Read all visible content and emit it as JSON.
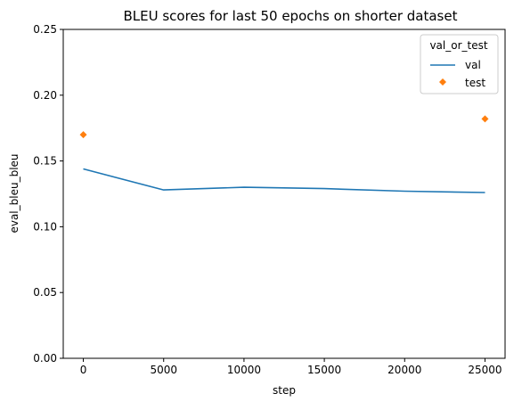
{
  "chart_data": {
    "type": "line",
    "title": "BLEU scores for last 50 epochs on shorter dataset",
    "xlabel": "step",
    "ylabel": "eval_bleu_bleu",
    "xlim": [
      -1250,
      26250
    ],
    "ylim": [
      0,
      0.25
    ],
    "x_ticks": [
      0,
      5000,
      10000,
      15000,
      20000,
      25000
    ],
    "y_ticks": [
      0.0,
      0.05,
      0.1,
      0.15,
      0.2,
      0.25
    ],
    "x_tick_labels": [
      "0",
      "5000",
      "10000",
      "15000",
      "20000",
      "25000"
    ],
    "y_tick_labels": [
      "0.00",
      "0.05",
      "0.10",
      "0.15",
      "0.20",
      "0.25"
    ],
    "grid": false,
    "legend": {
      "title": "val_or_test",
      "placement": "top-right"
    },
    "series": [
      {
        "name": "val",
        "kind": "line",
        "color": "#1f77b4",
        "x": [
          0,
          5000,
          10000,
          15000,
          20000,
          25000
        ],
        "y": [
          0.144,
          0.128,
          0.13,
          0.129,
          0.127,
          0.126
        ]
      },
      {
        "name": "test",
        "kind": "marker",
        "marker": "diamond",
        "color": "#ff7f0e",
        "x": [
          0,
          25000
        ],
        "y": [
          0.17,
          0.182
        ]
      }
    ]
  }
}
